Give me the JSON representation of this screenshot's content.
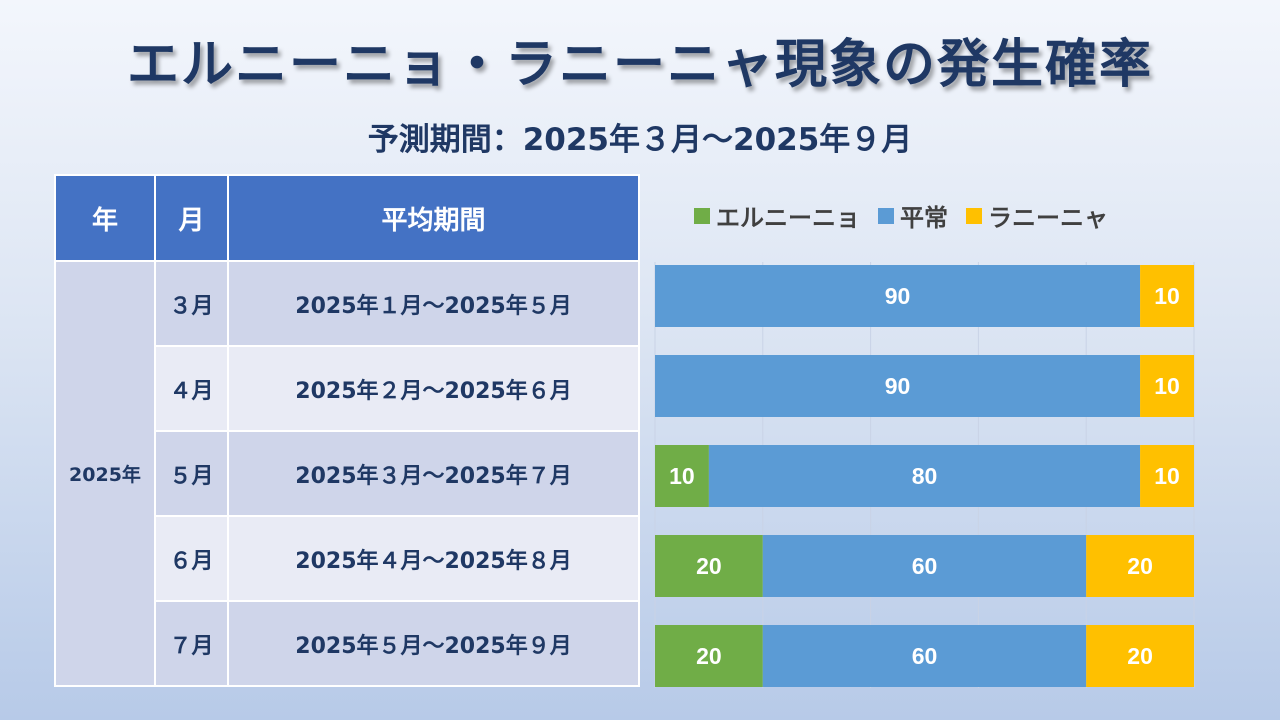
{
  "title": "エルニーニョ・ラニーニャ現象の発生確率",
  "subtitle": "予測期間：2025年３月～2025年９月",
  "table": {
    "headers": [
      "年",
      "月",
      "平均期間"
    ],
    "year": "2025年",
    "rows": [
      {
        "month": "３月",
        "period": "2025年１月～2025年５月"
      },
      {
        "month": "４月",
        "period": "2025年２月～2025年６月"
      },
      {
        "month": "５月",
        "period": "2025年３月～2025年７月"
      },
      {
        "month": "６月",
        "period": "2025年４月～2025年８月"
      },
      {
        "month": "７月",
        "period": "2025年５月～2025年９月"
      }
    ]
  },
  "chart_data": {
    "type": "bar",
    "orientation": "horizontal",
    "stacked": true,
    "categories": [
      "３月",
      "４月",
      "５月",
      "６月",
      "７月"
    ],
    "series": [
      {
        "name": "エルニーニョ",
        "color": "#70ad47",
        "values": [
          0,
          0,
          10,
          20,
          20
        ]
      },
      {
        "name": "平常",
        "color": "#5b9bd5",
        "values": [
          90,
          90,
          80,
          60,
          60
        ]
      },
      {
        "name": "ラニーニャ",
        "color": "#ffc000",
        "values": [
          10,
          10,
          10,
          20,
          20
        ]
      }
    ],
    "xlim": [
      0,
      100
    ],
    "grid": true,
    "legend": "top"
  }
}
